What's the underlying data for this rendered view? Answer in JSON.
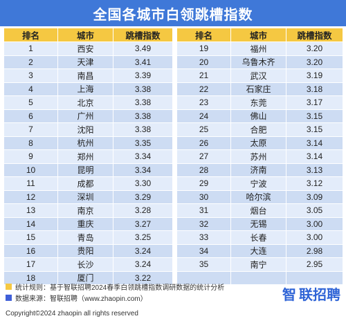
{
  "title": "全国各城市白领跳槽指数",
  "headers": {
    "left": [
      "排名",
      "城市",
      "跳槽指数"
    ],
    "right": [
      "排名",
      "城市",
      "跳槽指数"
    ]
  },
  "left_rows": [
    [
      "1",
      "西安",
      "3.49"
    ],
    [
      "2",
      "天津",
      "3.41"
    ],
    [
      "3",
      "南昌",
      "3.39"
    ],
    [
      "4",
      "上海",
      "3.38"
    ],
    [
      "5",
      "北京",
      "3.38"
    ],
    [
      "6",
      "广州",
      "3.38"
    ],
    [
      "7",
      "沈阳",
      "3.38"
    ],
    [
      "8",
      "杭州",
      "3.35"
    ],
    [
      "9",
      "郑州",
      "3.34"
    ],
    [
      "10",
      "昆明",
      "3.34"
    ],
    [
      "11",
      "成都",
      "3.30"
    ],
    [
      "12",
      "深圳",
      "3.29"
    ],
    [
      "13",
      "南京",
      "3.28"
    ],
    [
      "14",
      "重庆",
      "3.27"
    ],
    [
      "15",
      "青岛",
      "3.25"
    ],
    [
      "16",
      "贵阳",
      "3.24"
    ],
    [
      "17",
      "长沙",
      "3.24"
    ],
    [
      "18",
      "厦门",
      "3.22"
    ]
  ],
  "right_rows": [
    [
      "19",
      "福州",
      "3.20"
    ],
    [
      "20",
      "乌鲁木齐",
      "3.20"
    ],
    [
      "21",
      "武汉",
      "3.19"
    ],
    [
      "22",
      "石家庄",
      "3.18"
    ],
    [
      "23",
      "东莞",
      "3.17"
    ],
    [
      "24",
      "佛山",
      "3.15"
    ],
    [
      "25",
      "合肥",
      "3.15"
    ],
    [
      "26",
      "太原",
      "3.14"
    ],
    [
      "27",
      "苏州",
      "3.14"
    ],
    [
      "28",
      "济南",
      "3.13"
    ],
    [
      "29",
      "宁波",
      "3.12"
    ],
    [
      "30",
      "哈尔滨",
      "3.09"
    ],
    [
      "31",
      "烟台",
      "3.05"
    ],
    [
      "32",
      "无锡",
      "3.00"
    ],
    [
      "33",
      "长春",
      "3.00"
    ],
    [
      "34",
      "大连",
      "2.98"
    ],
    [
      "35",
      "南宁",
      "2.95"
    ]
  ],
  "footer": {
    "stat_rule": "统计规则：基于智联招聘2024春季白领跳槽指数调研数据的统计分析",
    "data_source": "数据来源：智联招聘（www.zhaopin.com）",
    "copyright": "Copyright©2024 zhaopin all rights reserved"
  },
  "brand": {
    "mark": "智",
    "name": "联招聘"
  },
  "colors": {
    "title_bg": "#3f78d8",
    "header_bg": "#f5c842",
    "row_light": "#e3ecfa",
    "row_dark": "#cddcf3",
    "brand_blue": "#2e63d6"
  }
}
